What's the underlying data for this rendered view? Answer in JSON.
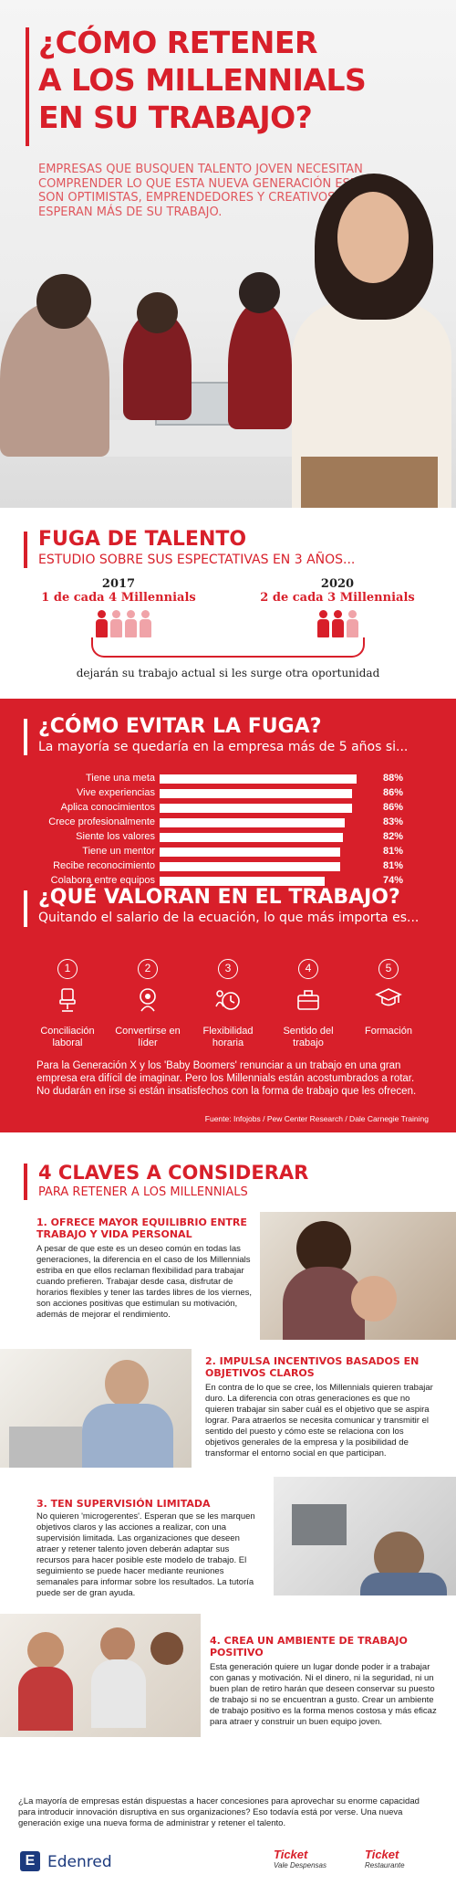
{
  "hero": {
    "title_line1": "¿CÓMO RETENER",
    "title_line2": "A LOS MILLENNIALS",
    "title_line3": "EN SU TRABAJO?",
    "intro": "EMPRESAS QUE BUSQUEN TALENTO JOVEN NECESITAN COMPRENDER LO QUE ESTA NUEVA GENERACIÓN ESPERA. SON OPTIMISTAS, EMPRENDEDORES Y CREATIVOS. SIEMPRE ESPERAN MÁS DE SU TRABAJO."
  },
  "fuga": {
    "title": "FUGA DE TALENTO",
    "subtitle": "ESTUDIO SOBRE SUS ESPECTATIVAS EN 3 AÑOS...",
    "left_year": "2017",
    "left_text": "1 de cada 4 Millennials",
    "left_ratio": 0.25,
    "right_year": "2020",
    "right_text": "2 de cada 3 Millennials",
    "right_ratio": 0.667,
    "note": "dejarán su trabajo actual si les surge otra oportunidad",
    "colors": {
      "full": "#d81f2a",
      "light": "#f0a3a8"
    }
  },
  "evitar": {
    "title": "¿CÓMO EVITAR LA FUGA?",
    "subtitle": "La mayoría se quedaría en la empresa más de 5 años si..."
  },
  "chart_data": {
    "type": "bar",
    "categories": [
      "Tiene una meta",
      "Vive experiencias",
      "Aplica conocimientos",
      "Crece profesionalmente",
      "Siente los valores",
      "Tiene un mentor",
      "Recibe reconocimiento",
      "Colabora entre equipos"
    ],
    "values": [
      88,
      86,
      86,
      83,
      82,
      81,
      81,
      74
    ],
    "labels": [
      "88%",
      "86%",
      "86%",
      "83%",
      "82%",
      "81%",
      "81%",
      "74%"
    ],
    "xlim": [
      0,
      100
    ]
  },
  "valoran": {
    "title": "¿QUÉ VALORAN EN EL TRABAJO?",
    "subtitle": "Quitando el salario de la ecuación, lo que más importa es...",
    "items": [
      {
        "num": "1",
        "label": "Conciliación laboral",
        "icon": "office-chair-icon"
      },
      {
        "num": "2",
        "label": "Convertirse en líder",
        "icon": "leader-icon"
      },
      {
        "num": "3",
        "label": "Flexibilidad horaria",
        "icon": "clock-person-icon"
      },
      {
        "num": "4",
        "label": "Sentido del trabajo",
        "icon": "briefcase-icon"
      },
      {
        "num": "5",
        "label": "Formación",
        "icon": "graduate-icon"
      }
    ],
    "paragraph": "Para la Generación X y los 'Baby Boomers' renunciar a un trabajo en una gran empresa era difícil de imaginar. Pero los Millennials están acostumbrados a rotar. No dudarán en irse si están insatisfechos con la forma de trabajo que les ofrecen.",
    "source": "Fuente: Infojobs / Pew Center Research / Dale Carnegie Training"
  },
  "claves": {
    "title": "4 CLAVES A CONSIDERAR",
    "subtitle": "PARA RETENER A LOS MILLENNIALS",
    "items": [
      {
        "title": "1. OFRECE MAYOR EQUILIBRIO ENTRE TRABAJO Y VIDA PERSONAL",
        "text": "A pesar de que este es un deseo común en todas las generaciones, la diferencia en el caso de los Millennials estriba en que ellos reclaman flexibilidad para trabajar cuando prefieren. Trabajar desde casa, disfrutar de horarios flexibles y tener las tardes libres de los viernes, son acciones positivas que estimulan su motivación, además de mejorar el rendimiento."
      },
      {
        "title": "2. IMPULSA INCENTIVOS BASADOS EN OBJETIVOS CLAROS",
        "text": "En contra de lo que se cree, los Millennials quieren trabajar duro. La diferencia con otras generaciones es que no quieren trabajar sin saber cuál es el objetivo que se aspira lograr. Para atraerlos se necesita comunicar y transmitir el sentido del puesto y cómo este se relaciona con los objetivos generales de la empresa y la posibilidad de transformar el entorno social en que participan."
      },
      {
        "title": "3. TEN SUPERVISIÓN LIMITADA",
        "text": "No quieren 'microgerentes'. Esperan que se les marquen objetivos claros y las acciones a realizar, con una supervisión limitada. Las organizaciones que deseen atraer y retener talento joven deberán adaptar sus recursos para hacer posible este modelo de trabajo. El seguimiento se puede hacer mediante reuniones semanales para informar sobre los resultados. La tutoría puede ser de gran ayuda."
      },
      {
        "title": "4. CREA UN AMBIENTE DE TRABAJO POSITIVO",
        "text": "Esta generación quiere un lugar donde poder ir a trabajar con ganas y motivación. Ni el dinero, ni la seguridad, ni un buen plan de retiro harán que deseen conservar su puesto de trabajo si no se encuentran a gusto. Crear un ambiente de trabajo positivo es la forma menos costosa y más eficaz para atraer y construir un buen equipo joven."
      }
    ],
    "closing": "¿La mayoría de empresas están dispuestas a hacer concesiones para aprovechar su enorme capacidad para introducir innovación disruptiva en sus organizaciones? Eso todavía está por verse. Una nueva generación exige una nueva forma de administrar y retener el talento."
  },
  "footer": {
    "brand": "Edenred",
    "ticket1_title": "Ticket",
    "ticket1_sub": "Vale Despensas",
    "ticket2_title": "Ticket",
    "ticket2_sub": "Restaurante"
  }
}
